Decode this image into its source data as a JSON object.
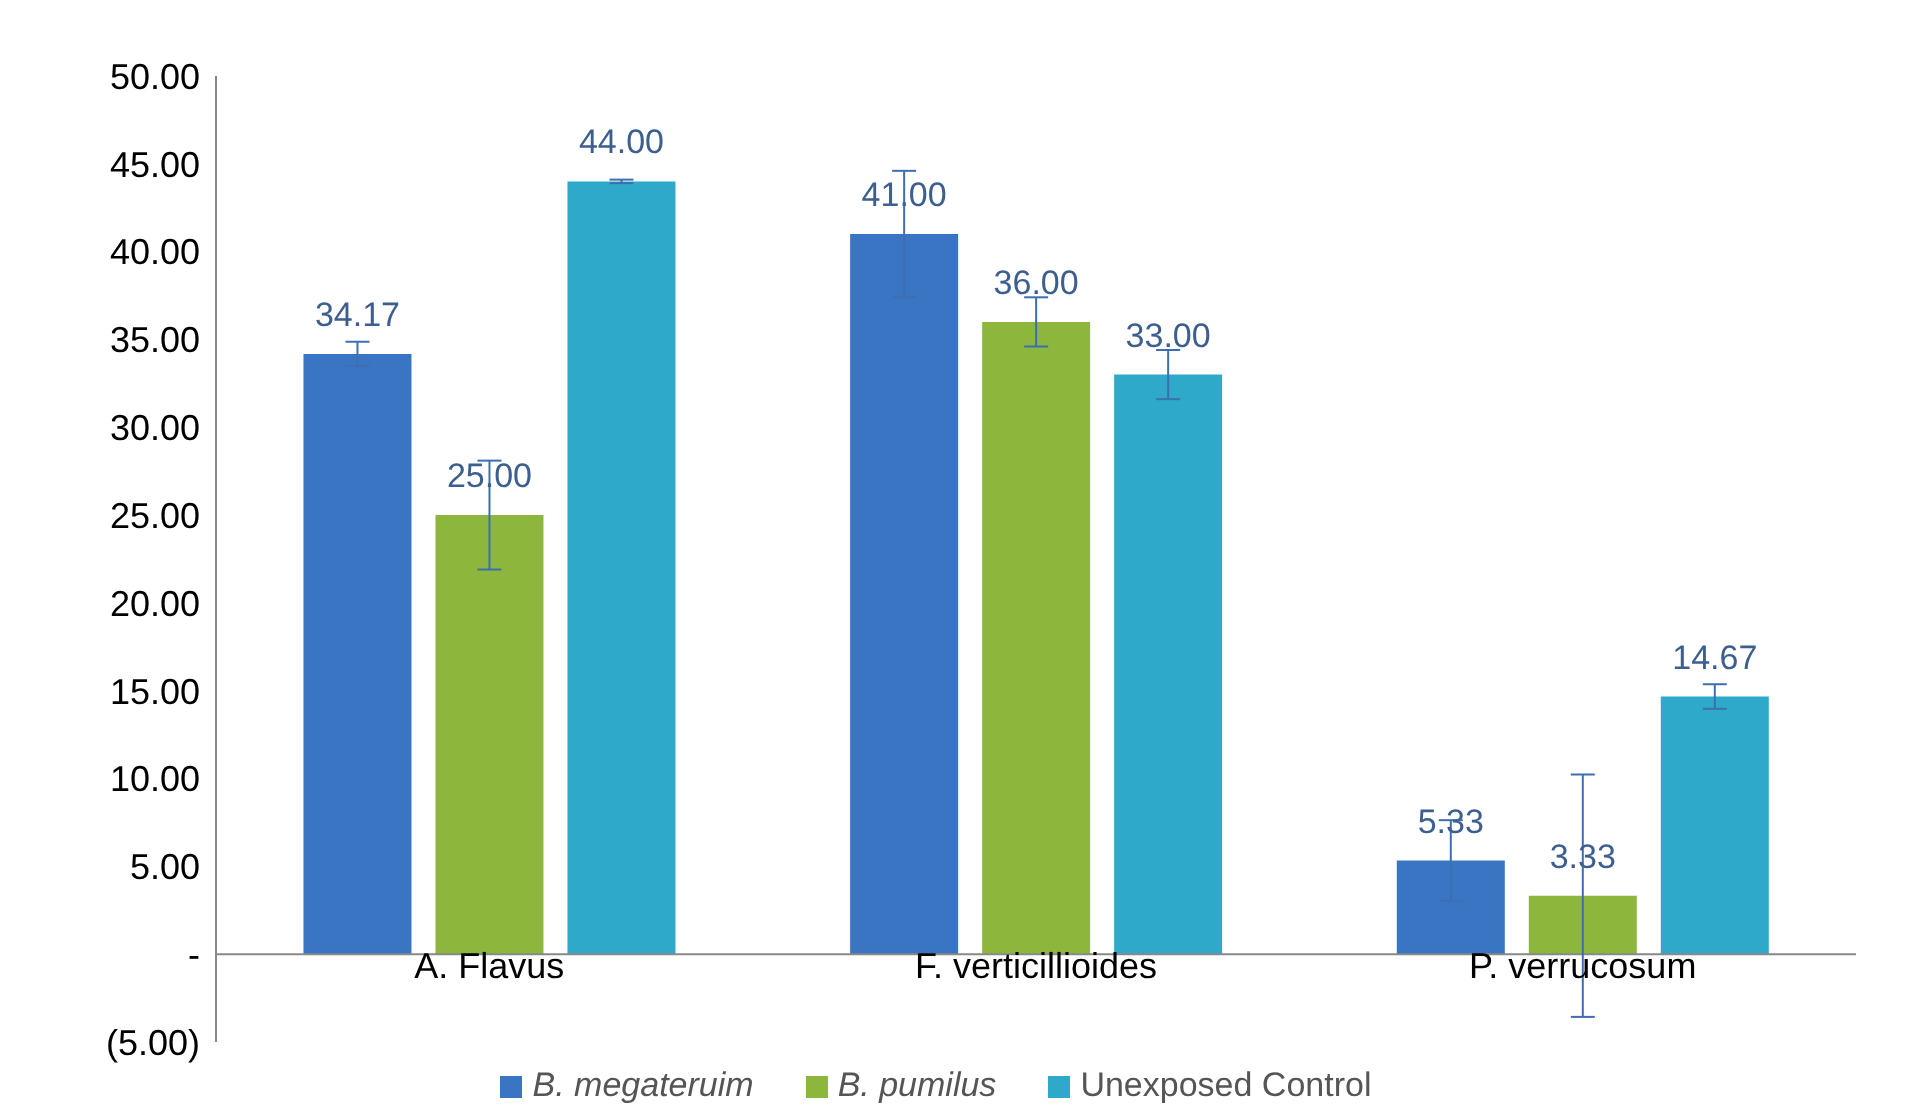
{
  "chart_data": {
    "type": "bar",
    "categories": [
      "A. Flavus",
      "F. verticillioides",
      "P. verrucosum"
    ],
    "series": [
      {
        "name": "B. megateruim",
        "color": "#3a75c4",
        "values": [
          34.17,
          41.0,
          5.33
        ],
        "value_labels": [
          "34.17",
          "41.00",
          "5.33"
        ],
        "errors": [
          0.7,
          3.6,
          2.3
        ]
      },
      {
        "name": "B. pumilus",
        "color": "#8db63c",
        "values": [
          25.0,
          36.0,
          3.33
        ],
        "value_labels": [
          "25.00",
          "36.00",
          "3.33"
        ],
        "errors": [
          3.1,
          1.4,
          6.9
        ]
      },
      {
        "name": "Unexposed Control",
        "color": "#2ea9c9",
        "values": [
          44.0,
          33.0,
          14.67
        ],
        "value_labels": [
          "44.00",
          "33.00",
          "14.67"
        ],
        "errors": [
          0.1,
          1.4,
          0.7
        ]
      }
    ],
    "ylim": [
      -5,
      50
    ],
    "yticks": [
      {
        "value": -5,
        "label": "(5.00)"
      },
      {
        "value": 0,
        "label": "-"
      },
      {
        "value": 5,
        "label": "5.00"
      },
      {
        "value": 10,
        "label": "10.00"
      },
      {
        "value": 15,
        "label": "15.00"
      },
      {
        "value": 20,
        "label": "20.00"
      },
      {
        "value": 25,
        "label": "25.00"
      },
      {
        "value": 30,
        "label": "30.00"
      },
      {
        "value": 35,
        "label": "35.00"
      },
      {
        "value": 40,
        "label": "40.00"
      },
      {
        "value": 45,
        "label": "45.00"
      },
      {
        "value": 50,
        "label": "50.00"
      }
    ],
    "grid": false,
    "legend": "bottom"
  }
}
